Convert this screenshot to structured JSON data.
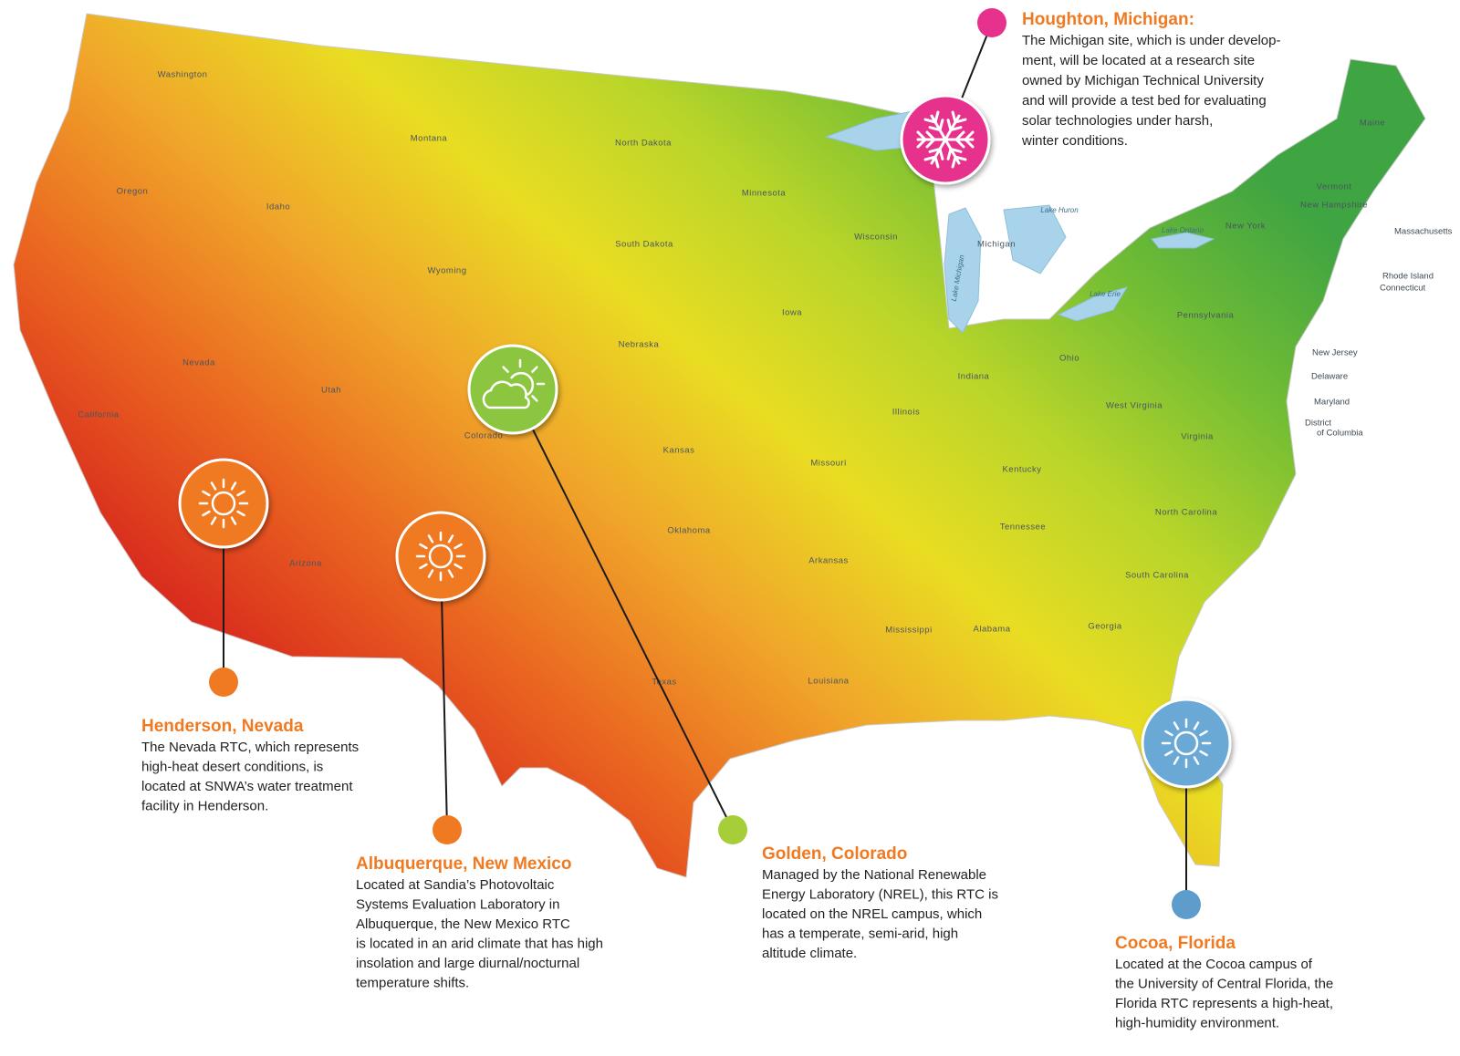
{
  "sites": [
    {
      "title": "Houghton, Michigan:",
      "lines": [
        "The Michigan site, which is under develop-",
        "ment, will be located at a research site",
        "owned by Michigan Technical University",
        "and will provide a test bed for evaluating",
        "solar technologies under harsh,",
        "winter conditions."
      ]
    },
    {
      "title": "Henderson, Nevada",
      "lines": [
        "The Nevada RTC, which represents",
        "high-heat desert conditions, is",
        "located at SNWA’s water treatment",
        "facility in Henderson."
      ]
    },
    {
      "title": "Albuquerque, New Mexico",
      "lines": [
        "Located at Sandia’s Photovoltaic",
        "Systems Evaluation Laboratory in",
        "Albuquerque, the New Mexico RTC",
        "is located in an arid climate that has high",
        "insolation and large diurnal/nocturnal",
        "temperature shifts."
      ]
    },
    {
      "title": "Golden, Colorado",
      "lines": [
        "Managed by the National Renewable",
        "Energy Laboratory (NREL), this RTC is",
        "located on the NREL campus, which",
        "has a temperate, semi-arid, high",
        "altitude climate."
      ]
    },
    {
      "title": "Cocoa, Florida",
      "lines": [
        "Located at the Cocoa campus of",
        "the University of Central Florida, the",
        "Florida RTC represents a high-heat,",
        "high-humidity environment."
      ]
    }
  ],
  "map_labels": {
    "states": [
      "Washington",
      "Oregon",
      "Idaho",
      "Montana",
      "Wyoming",
      "Nevada",
      "California",
      "Utah",
      "Colorado",
      "Arizona",
      "North Dakota",
      "South Dakota",
      "Nebraska",
      "Kansas",
      "Oklahoma",
      "Texas",
      "Minnesota",
      "Iowa",
      "Missouri",
      "Arkansas",
      "Louisiana",
      "Wisconsin",
      "Illinois",
      "Michigan",
      "Indiana",
      "Ohio",
      "Kentucky",
      "Tennessee",
      "Mississippi",
      "Alabama",
      "Georgia",
      "South Carolina",
      "North Carolina",
      "Virginia",
      "West Virginia",
      "Pennsylvania",
      "New York",
      "Vermont",
      "New Hampshire",
      "Maine",
      "Massachusetts",
      "Rhode Island",
      "Connecticut",
      "New Jersey",
      "Delaware",
      "Maryland",
      "District",
      "of Columbia"
    ],
    "lakes": [
      "Lake Huron",
      "Lake Ontario",
      "Lake Erie",
      "Lake Michigan"
    ]
  }
}
